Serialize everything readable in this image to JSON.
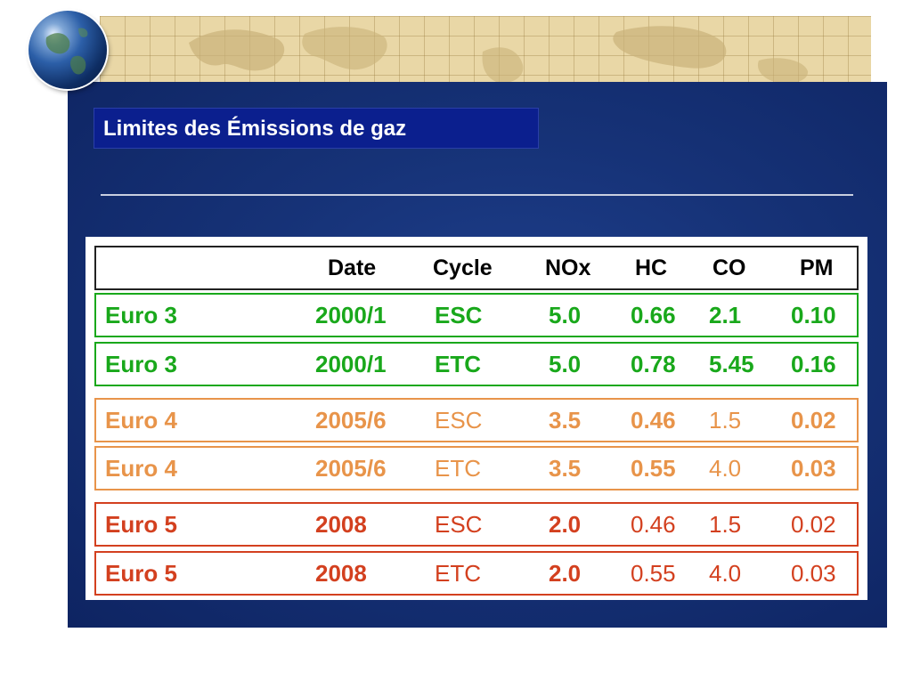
{
  "slide": {
    "title": "Limites des Émissions de gaz"
  },
  "colors": {
    "panel": "#163277",
    "title_box": "#0b1f8e",
    "euro3": "#19a81b",
    "euro4": "#e8944a",
    "euro5": "#d3401f"
  },
  "table": {
    "headers": [
      "",
      "Date",
      "Cycle",
      "NOx",
      "HC",
      "CO",
      "PM"
    ],
    "rows": [
      {
        "name": "Euro 3",
        "date": "2000/1",
        "cycle": "ESC",
        "nox": "5.0",
        "hc": "0.66",
        "co": "2.1",
        "pm": "0.10",
        "group": "euro3"
      },
      {
        "name": "Euro 3",
        "date": "2000/1",
        "cycle": "ETC",
        "nox": "5.0",
        "hc": "0.78",
        "co": "5.45",
        "pm": "0.16",
        "group": "euro3"
      },
      {
        "name": "Euro 4",
        "date": "2005/6",
        "cycle": "ESC",
        "nox": "3.5",
        "hc": "0.46",
        "co": "1.5",
        "pm": "0.02",
        "group": "euro4"
      },
      {
        "name": "Euro 4",
        "date": "2005/6",
        "cycle": "ETC",
        "nox": "3.5",
        "hc": "0.55",
        "co": "4.0",
        "pm": "0.03",
        "group": "euro4"
      },
      {
        "name": "Euro 5",
        "date": "2008",
        "cycle": "ESC",
        "nox": "2.0",
        "hc": "0.46",
        "co": "1.5",
        "pm": "0.02",
        "group": "euro5"
      },
      {
        "name": "Euro 5",
        "date": "2008",
        "cycle": "ETC",
        "nox": "2.0",
        "hc": "0.55",
        "co": "4.0",
        "pm": "0.03",
        "group": "euro5"
      }
    ]
  }
}
